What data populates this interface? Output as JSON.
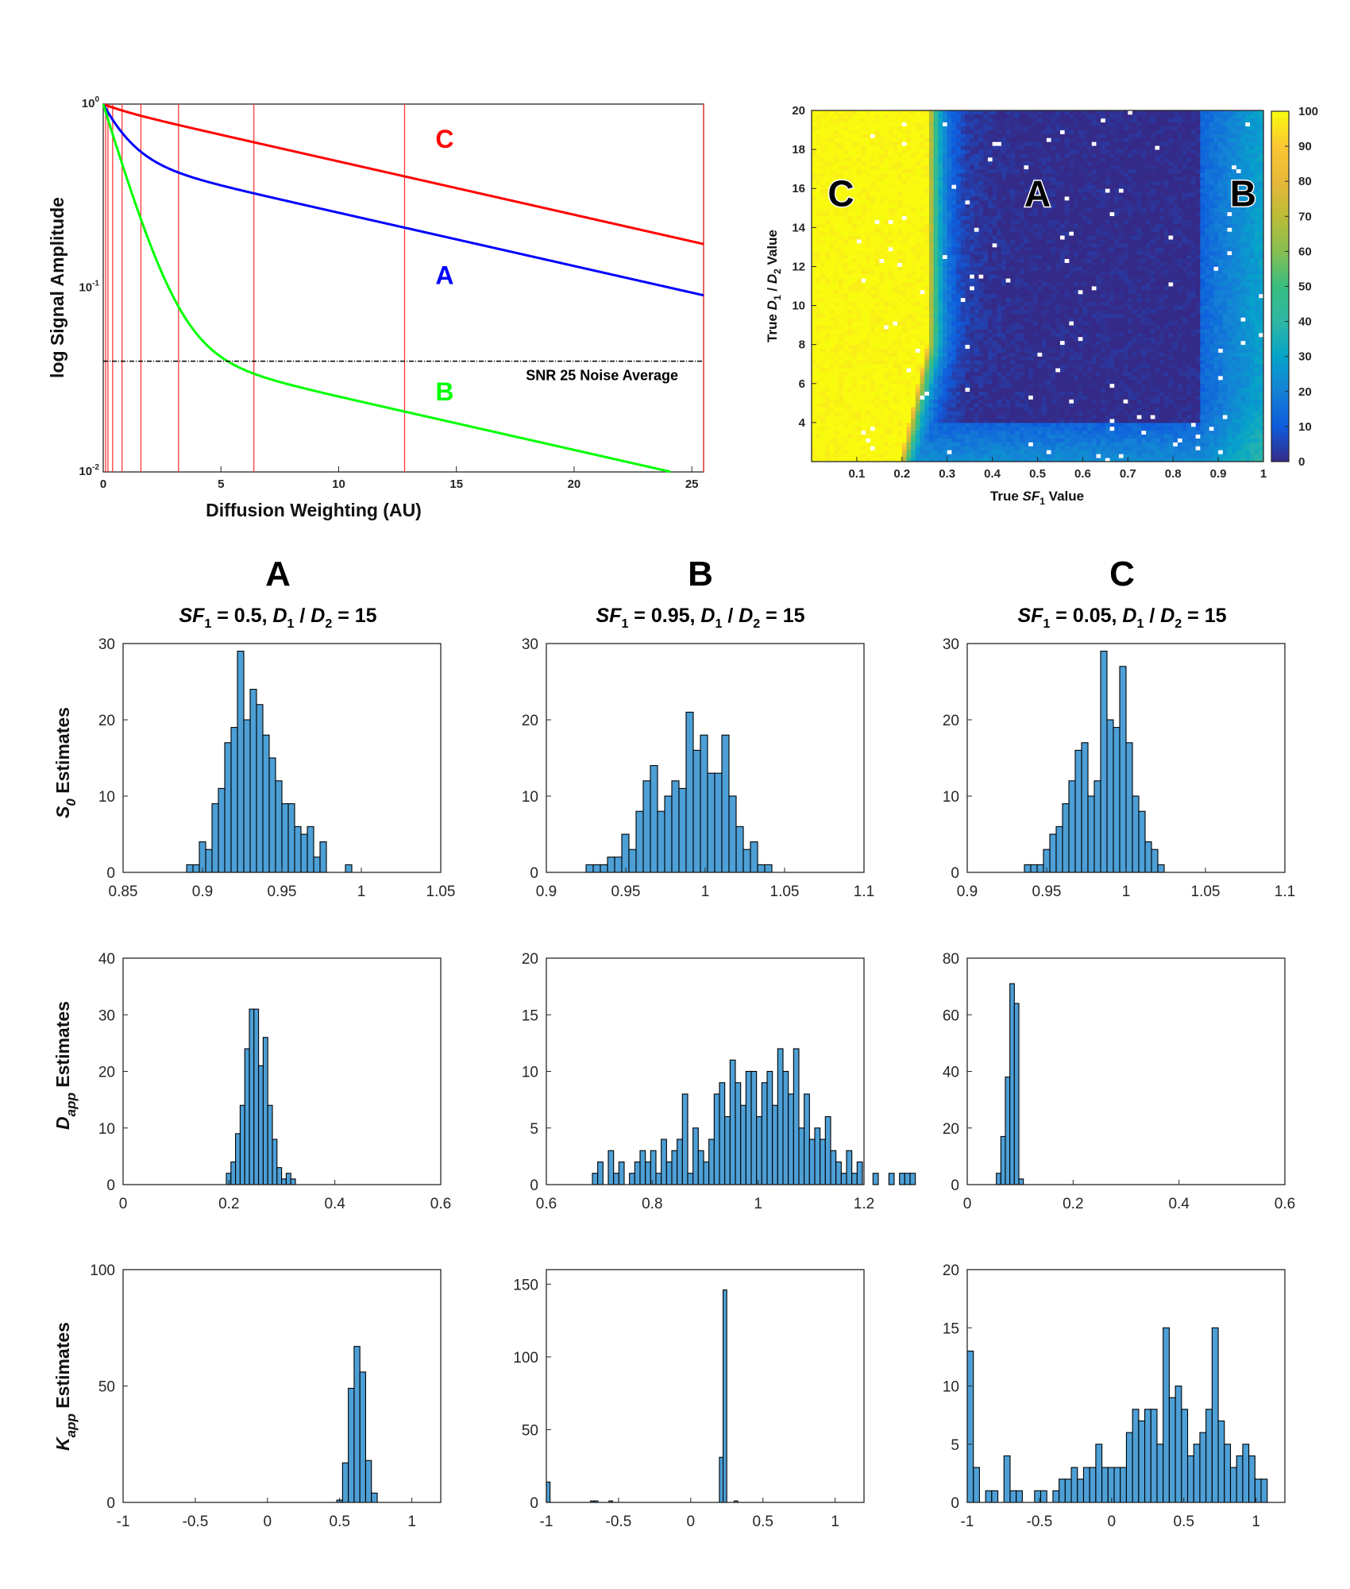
{
  "chart_data": [
    {
      "id": "signal_decay",
      "type": "line",
      "xlabel": "Diffusion Weighting (AU)",
      "ylabel": "log Signal Amplitude",
      "yscale": "log",
      "xlim": [
        0,
        25.5
      ],
      "ylim": [
        0.01,
        1
      ],
      "xticks": [
        "0",
        "5",
        "10",
        "15",
        "20",
        "25"
      ],
      "yticks": [
        {
          "base": "10",
          "exp": "0"
        },
        {
          "base": "10",
          "exp": "-1"
        },
        {
          "base": "10",
          "exp": "-2"
        }
      ],
      "vertical_lines_x": [
        0.1,
        0.2,
        0.4,
        0.8,
        1.6,
        3.2,
        6.4,
        12.8,
        25.6
      ],
      "noise_level": 0.04,
      "noise_label": "SNR 25 Noise Average",
      "series": [
        {
          "name": "C",
          "color": "#ff0000",
          "sf1": 0.05,
          "d1": 1.0,
          "d2": 0.0667
        },
        {
          "name": "A",
          "color": "#0000ff",
          "sf1": 0.5,
          "d1": 1.0,
          "d2": 0.0667
        },
        {
          "name": "B",
          "color": "#00ff00",
          "sf1": 0.95,
          "d1": 1.0,
          "d2": 0.0667
        }
      ],
      "label_positions": [
        {
          "name": "C",
          "x": 14.5,
          "y": 0.58
        },
        {
          "name": "A",
          "x": 14.5,
          "y": 0.105
        },
        {
          "name": "B",
          "x": 14.5,
          "y": 0.0245
        }
      ]
    },
    {
      "id": "heatmap",
      "type": "heatmap",
      "xlabel_parts": [
        "True ",
        "SF",
        "1",
        " Value"
      ],
      "ylabel_parts": [
        "True ",
        "D",
        "1",
        " / ",
        "D",
        "2",
        " Value"
      ],
      "xlim": [
        0,
        1
      ],
      "ylim": [
        2,
        20
      ],
      "xticks": [
        "0.1",
        "0.2",
        "0.3",
        "0.4",
        "0.5",
        "0.6",
        "0.7",
        "0.8",
        "0.9",
        "1"
      ],
      "yticks": [
        "4",
        "6",
        "8",
        "10",
        "12",
        "14",
        "16",
        "18",
        "20"
      ],
      "colorbar_ticks": [
        "0",
        "10",
        "20",
        "30",
        "40",
        "50",
        "60",
        "70",
        "80",
        "90",
        "100"
      ],
      "colorbar_range": [
        0,
        100
      ],
      "region_labels": [
        {
          "text": "C",
          "x": 0.065,
          "y": 15.1
        },
        {
          "text": "A",
          "x": 0.5,
          "y": 15.1
        },
        {
          "text": "B",
          "x": 0.955,
          "y": 15.1
        }
      ]
    },
    {
      "id": "A_S0",
      "type": "bar",
      "column": "A",
      "row": "S0",
      "xlim": [
        0.85,
        1.05
      ],
      "ylim": [
        0,
        30
      ],
      "xticks": [
        "0.85",
        "0.9",
        "0.95",
        "1",
        "1.05"
      ],
      "yticks": [
        "0",
        "10",
        "20",
        "30"
      ],
      "bin_start": 0.89,
      "bin_width": 0.004,
      "counts": [
        1,
        1,
        4,
        3,
        9,
        11,
        17,
        19,
        29,
        20,
        24,
        22,
        18,
        15,
        12,
        9,
        9,
        6,
        5,
        6,
        2,
        4,
        0,
        0,
        0,
        1
      ]
    },
    {
      "id": "B_S0",
      "type": "bar",
      "column": "B",
      "row": "S0",
      "xlim": [
        0.9,
        1.1
      ],
      "ylim": [
        0,
        30
      ],
      "xticks": [
        "0.9",
        "0.95",
        "1",
        "1.05",
        "1.1"
      ],
      "yticks": [
        "0",
        "10",
        "20",
        "30"
      ],
      "bin_start": 0.925,
      "bin_width": 0.0045,
      "counts": [
        1,
        1,
        1,
        2,
        2,
        5,
        3,
        8,
        12,
        14,
        8,
        10,
        12,
        11,
        21,
        16,
        18,
        13,
        13,
        18,
        10,
        6,
        3,
        4,
        1,
        1
      ]
    },
    {
      "id": "C_S0",
      "type": "bar",
      "column": "C",
      "row": "S0",
      "xlim": [
        0.9,
        1.1
      ],
      "ylim": [
        0,
        30
      ],
      "xticks": [
        "0.9",
        "0.95",
        "1",
        "1.05",
        "1.1"
      ],
      "yticks": [
        "0",
        "10",
        "20",
        "30"
      ],
      "bin_start": 0.936,
      "bin_width": 0.004,
      "counts": [
        1,
        1,
        1,
        3,
        5,
        6,
        9,
        12,
        16,
        17,
        10,
        12,
        29,
        20,
        19,
        27,
        17,
        10,
        8,
        4,
        3,
        1
      ]
    },
    {
      "id": "A_Dapp",
      "type": "bar",
      "column": "A",
      "row": "Dapp",
      "xlim": [
        0,
        0.6
      ],
      "ylim": [
        0,
        40
      ],
      "xticks": [
        "0",
        "0.2",
        "0.4",
        "0.6"
      ],
      "yticks": [
        "0",
        "10",
        "20",
        "30",
        "40"
      ],
      "bin_start": 0.195,
      "bin_width": 0.0087,
      "counts": [
        2,
        4,
        9,
        14,
        24,
        31,
        31,
        21,
        26,
        14,
        8,
        3,
        1,
        2,
        1
      ]
    },
    {
      "id": "B_Dapp",
      "type": "bar",
      "column": "B",
      "row": "Dapp",
      "xlim": [
        0.6,
        1.2
      ],
      "ylim": [
        0,
        20
      ],
      "xticks": [
        "0.6",
        "0.8",
        "1",
        "1.2"
      ],
      "yticks": [
        "0",
        "5",
        "10",
        "15",
        "20"
      ],
      "bin_start": 0.687,
      "bin_width": 0.01,
      "counts": [
        1,
        2,
        0,
        3,
        1,
        2,
        0,
        1,
        2,
        3,
        2,
        3,
        1,
        4,
        2,
        3,
        4,
        8,
        1,
        5,
        3,
        2,
        4,
        8,
        9,
        6,
        11,
        9,
        7,
        10,
        10,
        6,
        9,
        10,
        7,
        12,
        10,
        8,
        12,
        5,
        8,
        4,
        5,
        4,
        6,
        3,
        2,
        1,
        3,
        1,
        2,
        0,
        0,
        1,
        0,
        0,
        1,
        0,
        1,
        1,
        1
      ]
    },
    {
      "id": "C_Dapp",
      "type": "bar",
      "column": "C",
      "row": "Dapp",
      "xlim": [
        0,
        0.6
      ],
      "ylim": [
        0,
        80
      ],
      "xticks": [
        "0",
        "0.2",
        "0.4",
        "0.6"
      ],
      "yticks": [
        "0",
        "20",
        "40",
        "60",
        "80"
      ],
      "bin_start": 0.055,
      "bin_width": 0.0085,
      "counts": [
        4,
        17,
        38,
        71,
        64,
        2
      ]
    },
    {
      "id": "A_Kapp",
      "type": "bar",
      "column": "A",
      "row": "Kapp",
      "xlim": [
        -1,
        1.2
      ],
      "ylim": [
        0,
        100
      ],
      "xticks": [
        "-1",
        "-0.5",
        "0",
        "0.5",
        "1"
      ],
      "yticks": [
        "0",
        "50",
        "100"
      ],
      "bin_start": 0.48,
      "bin_width": 0.04,
      "counts": [
        1,
        17,
        49,
        67,
        56,
        18,
        4
      ]
    },
    {
      "id": "B_Kapp",
      "type": "bar",
      "column": "B",
      "row": "Kapp",
      "xlim": [
        -1,
        1.2
      ],
      "ylim": [
        0,
        160
      ],
      "xticks": [
        "-1",
        "-0.5",
        "0",
        "0.5",
        "1"
      ],
      "yticks": [
        "0",
        "50",
        "100",
        "150"
      ],
      "bin_start": -1.0,
      "bin_width": 0.0255,
      "counts": [
        14,
        0,
        0,
        0,
        0,
        0,
        0,
        0,
        0,
        0,
        0,
        0,
        1,
        1,
        0,
        0,
        0,
        1,
        0,
        0,
        0,
        0,
        0,
        0,
        0,
        0,
        0,
        0,
        0,
        0,
        0,
        0,
        0,
        0,
        0,
        0,
        0,
        0,
        0,
        0,
        0,
        0,
        0,
        0,
        0,
        0,
        0,
        31,
        146,
        0,
        0,
        1
      ]
    },
    {
      "id": "C_Kapp",
      "type": "bar",
      "column": "C",
      "row": "Kapp",
      "xlim": [
        -1,
        1.2
      ],
      "ylim": [
        0,
        20
      ],
      "xticks": [
        "-1",
        "-0.5",
        "0",
        "0.5",
        "1"
      ],
      "yticks": [
        "0",
        "5",
        "10",
        "15",
        "20"
      ],
      "bin_start": -1.0,
      "bin_width": 0.0424,
      "counts": [
        13,
        3,
        0,
        1,
        1,
        0,
        4,
        1,
        1,
        0,
        0,
        1,
        1,
        0,
        1,
        2,
        2,
        3,
        2,
        3,
        3,
        5,
        3,
        3,
        3,
        3,
        6,
        8,
        7,
        8,
        8,
        5,
        15,
        9,
        10,
        8,
        4,
        5,
        6,
        8,
        15,
        7,
        5,
        3,
        4,
        5,
        4,
        2,
        2
      ]
    }
  ],
  "columns": [
    {
      "letter": "A",
      "sf1": "0.5",
      "ratio": "15"
    },
    {
      "letter": "B",
      "sf1": "0.95",
      "ratio": "15"
    },
    {
      "letter": "C",
      "sf1": "0.05",
      "ratio": "15"
    }
  ],
  "subtitle_text": {
    "sf": "SF",
    "sub1": "1",
    "eq": " = ",
    "sep": ", ",
    "d": "D",
    "sub2": "2",
    "slash": " / "
  },
  "row_labels": [
    {
      "main": "S",
      "sub": "0",
      "rest": " Estimates"
    },
    {
      "main": "D",
      "sub": "app",
      "rest": " Estimates"
    },
    {
      "main": "K",
      "sub": "app",
      "rest": " Estimates"
    }
  ]
}
